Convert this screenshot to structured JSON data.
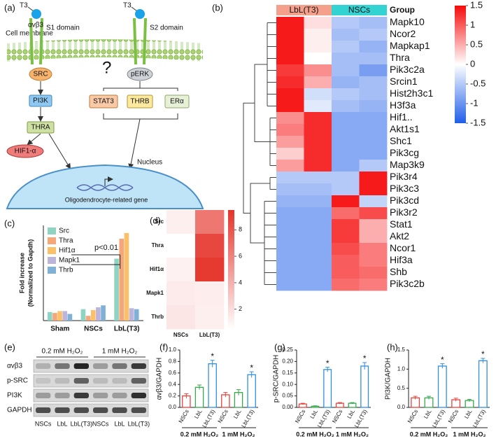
{
  "diagram": {
    "panel": "(a)",
    "ligand": "T3",
    "receptor": "αvβ3",
    "domains": [
      "S1 domain",
      "S2 domain"
    ],
    "membrane": "Cell membrane",
    "question": "?",
    "left_path": [
      "SRC",
      "PI3K",
      "THRA",
      "HIF1-α"
    ],
    "right_path": [
      "pERK",
      "STAT3",
      "THRB",
      "ERα"
    ],
    "nucleus": "Nucleus",
    "gene": "Oligodendrocyte-related gene"
  },
  "blot": {
    "panel": "(e)",
    "conditions": [
      "0.2 mM H₂O₂",
      "1 mM H₂O₂"
    ],
    "proteins": [
      "αvβ3",
      "p-SRC",
      "PI3K",
      "GAPDH"
    ],
    "lanes": [
      "NSCs",
      "LbL",
      "LbL(T3)",
      "NSCs",
      "LbL",
      "LbL(T3)"
    ]
  },
  "chart_data": [
    {
      "type": "heatmap",
      "panel": "(b)",
      "group_title": "Group",
      "groups": [
        {
          "name": "LbL(T3)",
          "color": "#f4a08a"
        },
        {
          "name": "NSCs",
          "color": "#34d3d3"
        }
      ],
      "rows": [
        "Mapk10",
        "Ncor2",
        "Mapkap1",
        "Thra",
        "Pik3c2a",
        "Srcin1",
        "Hist2h3c1",
        "H3f3a",
        "Hif1..",
        "Akt1s1",
        "Shc1",
        "Pik3cg",
        "Map3k9",
        "Pik3r4",
        "Pik3c3",
        "Pik3cd",
        "Pik3r2",
        "Stat1",
        "Akt2",
        "Ncor1",
        "Hif3a",
        "Shb",
        "Pik3c2b"
      ],
      "values": [
        [
          1.4,
          0.2,
          -0.5,
          -0.6
        ],
        [
          1.4,
          0.1,
          -0.6,
          -0.5
        ],
        [
          1.4,
          0.1,
          -0.5,
          -0.7
        ],
        [
          1.4,
          0.0,
          -0.6,
          -0.6
        ],
        [
          1.2,
          0.7,
          -0.6,
          -0.9
        ],
        [
          1.3,
          0.5,
          -0.7,
          -0.6
        ],
        [
          1.4,
          -0.3,
          -0.5,
          -0.6
        ],
        [
          1.4,
          -0.2,
          -0.6,
          -0.7
        ],
        [
          0.7,
          1.3,
          -0.8,
          -0.8
        ],
        [
          0.8,
          1.3,
          -0.8,
          -0.8
        ],
        [
          0.6,
          1.3,
          -0.8,
          -0.8
        ],
        [
          0.3,
          1.3,
          -0.8,
          -0.8
        ],
        [
          0.6,
          1.3,
          -0.8,
          -0.5
        ],
        [
          -0.5,
          -0.5,
          -0.5,
          1.4
        ],
        [
          -0.6,
          -0.6,
          -0.5,
          1.4
        ],
        [
          -0.7,
          -0.7,
          1.4,
          -0.4
        ],
        [
          -0.8,
          -0.8,
          0.9,
          1.1
        ],
        [
          -0.8,
          -0.8,
          1.2,
          0.5
        ],
        [
          -0.8,
          -0.8,
          1.2,
          0.5
        ],
        [
          -0.8,
          -0.8,
          1.1,
          0.8
        ],
        [
          -0.8,
          -0.8,
          1.0,
          0.8
        ],
        [
          -0.8,
          -0.8,
          1.0,
          0.9
        ],
        [
          -0.8,
          -0.8,
          0.9,
          0.8
        ]
      ],
      "zlim": [
        -1.5,
        1.5
      ],
      "zticks": [
        1.5,
        1,
        0.5,
        0,
        -0.5,
        -1,
        -1.5
      ],
      "colors": [
        "#1f5ee8",
        "#ffffff",
        "#f50a0a"
      ]
    },
    {
      "type": "bar",
      "panel": "(c)",
      "ylabel": [
        "Fold increase",
        "(Normalized to Gapdh)"
      ],
      "categories": [
        "Sham",
        "NSCs",
        "LbL(T3)"
      ],
      "series": [
        {
          "name": "Src",
          "color": "#8fd3c3",
          "values": [
            0.9,
            1.2,
            6.5
          ]
        },
        {
          "name": "Thra",
          "color": "#f6a77a",
          "values": [
            0.8,
            0.5,
            8.6
          ]
        },
        {
          "name": "Hif1α",
          "color": "#fbc16a",
          "values": [
            1.0,
            1.1,
            9.2
          ]
        },
        {
          "name": "Mapk1",
          "color": "#bdb4dc",
          "values": [
            1.0,
            1.4,
            1.3
          ]
        },
        {
          "name": "Thrb",
          "color": "#7fb1d6",
          "values": [
            0.7,
            1.6,
            1.2
          ]
        }
      ],
      "ylim": [
        0,
        10
      ],
      "annotation": "p<0.01"
    },
    {
      "type": "heatmap",
      "panel": "(d)",
      "rows": [
        "Src",
        "Thra",
        "Hif1α",
        "Mapk1",
        "Thrb"
      ],
      "columns": [
        "NSCs",
        "LbL(T3)"
      ],
      "values": [
        [
          1.2,
          6.5
        ],
        [
          0.5,
          8.6
        ],
        [
          1.1,
          9.2
        ],
        [
          1.4,
          1.3
        ],
        [
          1.6,
          1.2
        ]
      ],
      "zlim": [
        0.5,
        9.5
      ],
      "zticks": [
        2,
        4,
        6,
        8
      ],
      "colors": [
        "#ffffff",
        "#e5332a"
      ]
    },
    {
      "type": "bar",
      "panel": "(f)",
      "ylabel": "αvβ3/GAPDH",
      "categories": [
        "NSCs",
        "LbL",
        "LbL(T3)",
        "NSCs",
        "LbL",
        "LbL(T3)"
      ],
      "groups": [
        "0.2 mM H₂O₂",
        "1 mM H₂O₂"
      ],
      "values": [
        0.2,
        0.35,
        0.76,
        0.22,
        0.26,
        0.57
      ],
      "errors": [
        0.04,
        0.04,
        0.06,
        0.04,
        0.05,
        0.05
      ],
      "significance": [
        null,
        null,
        "*",
        null,
        null,
        "*"
      ],
      "colors": [
        "#e8433d",
        "#35a84a",
        "#2f8fe0",
        "#e8433d",
        "#35a84a",
        "#2f8fe0"
      ],
      "ylim": [
        0,
        1.0
      ],
      "yticks": [
        {
          "value": 0,
          "label": "0.0"
        },
        0.2,
        0.4,
        0.6,
        0.8,
        {
          "value": 1.0,
          "label": "1.0"
        }
      ]
    },
    {
      "type": "bar",
      "panel": "(g)",
      "ylabel": "p-SRC/GAPDH",
      "categories": [
        "NSCs",
        "LbL",
        "LbL(T3)",
        "NSCs",
        "LbL",
        "LbL(T3)"
      ],
      "groups": [
        "0.2 mM H₂O₂",
        "1 mM H₂O₂"
      ],
      "values": [
        0.015,
        0.005,
        0.165,
        0.018,
        0.018,
        0.18
      ],
      "errors": [
        0.003,
        0.002,
        0.01,
        0.003,
        0.003,
        0.015
      ],
      "significance": [
        null,
        null,
        "*",
        null,
        null,
        "*"
      ],
      "colors": [
        "#e8433d",
        "#35a84a",
        "#2f8fe0",
        "#e8433d",
        "#35a84a",
        "#2f8fe0"
      ],
      "ylim": [
        0,
        0.25
      ],
      "yticks": [
        {
          "value": 0,
          "label": "0.00"
        },
        0.05,
        {
          "value": 0.1,
          "label": "0.10"
        },
        0.15,
        {
          "value": 0.2,
          "label": "0.20"
        },
        0.25
      ]
    },
    {
      "type": "bar",
      "panel": "(h)",
      "ylabel": "PI3K/GAPDH",
      "categories": [
        "NSCs",
        "LbL",
        "LbL(T3)",
        "NSCs",
        "LbL",
        "LbL(T3)"
      ],
      "groups": [
        "0.2 mM H₂O₂",
        "1 mM H₂O₂"
      ],
      "values": [
        0.25,
        0.25,
        1.08,
        0.2,
        0.18,
        1.22
      ],
      "errors": [
        0.04,
        0.04,
        0.06,
        0.04,
        0.03,
        0.06
      ],
      "significance": [
        null,
        null,
        "*",
        null,
        null,
        "*"
      ],
      "colors": [
        "#e8433d",
        "#35a84a",
        "#2f8fe0",
        "#e8433d",
        "#35a84a",
        "#2f8fe0"
      ],
      "ylim": [
        0,
        1.5
      ],
      "yticks": [
        {
          "value": 0,
          "label": "0.0"
        },
        0.5,
        {
          "value": 1.0,
          "label": "1.0"
        },
        1.5
      ]
    }
  ]
}
